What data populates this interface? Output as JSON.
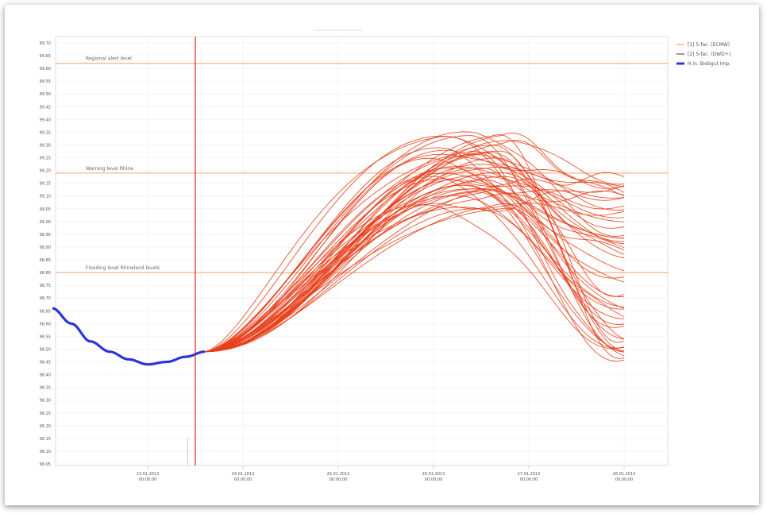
{
  "chart_data": {
    "type": "line",
    "title": "",
    "xlabel": "",
    "ylabel": "",
    "legend_position": "top-right",
    "y_ticks": [
      "99.70",
      "99.65",
      "99.60",
      "99.55",
      "99.50",
      "99.45",
      "99.40",
      "99.35",
      "99.30",
      "99.25",
      "99.20",
      "99.15",
      "99.10",
      "99.05",
      "99.00",
      "98.95",
      "98.90",
      "98.85",
      "98.80",
      "98.75",
      "98.70",
      "98.65",
      "98.60",
      "98.55",
      "98.50",
      "98.45",
      "98.40",
      "98.35",
      "98.30",
      "98.25",
      "98.20",
      "98.15",
      "98.10",
      "98.05"
    ],
    "x_ticks": [
      {
        "date": "23.01.2013",
        "time": "00:00:00"
      },
      {
        "date": "24.01.2013",
        "time": "00:00:00"
      },
      {
        "date": "25.01.2013",
        "time": "00:00:00"
      },
      {
        "date": "26.01.2013",
        "time": "00:00:00"
      },
      {
        "date": "27.01.2013",
        "time": "00:00:00"
      },
      {
        "date": "28.01.2013",
        "time": "00:00:00"
      }
    ],
    "thresholds": [
      {
        "label": "Regional alert level",
        "value": 99.62
      },
      {
        "label": "Warning level Rhine",
        "value": 99.19
      },
      {
        "label": "Flooding level Rhineland levels",
        "value": 98.8
      }
    ],
    "forecast_start": "23.01.2013 12:00:00",
    "series": [
      {
        "name": "[1] 5-fac. (ECMW)",
        "color": "#f4a460"
      },
      {
        "name": "[2] 5-fac. (DWD+)",
        "color": "#555555"
      },
      {
        "name": "H.in. Biebgut Imp.",
        "color": "#2b35d8"
      }
    ],
    "observed": {
      "x_days": [
        -1.0,
        -0.8,
        -0.6,
        -0.4,
        -0.2,
        0.0,
        0.2,
        0.4,
        0.6
      ],
      "values": [
        98.66,
        98.6,
        98.53,
        98.49,
        98.46,
        98.44,
        98.45,
        98.47,
        98.49
      ]
    },
    "ensemble": {
      "member_count": 48,
      "start_value": 98.49,
      "peak_range": [
        99.05,
        99.36
      ],
      "end_range": [
        98.45,
        99.18
      ],
      "color": "#e8401c"
    },
    "colors": {
      "threshold": "#f0a070",
      "forecast_marker": "#e8202a",
      "observed": "#2b35d8",
      "ensemble": "#e8401c"
    }
  }
}
